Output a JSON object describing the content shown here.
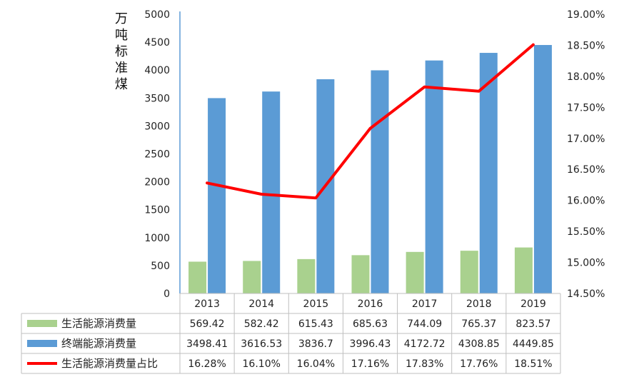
{
  "chart_data": {
    "type": "bar",
    "categories": [
      "2013",
      "2014",
      "2015",
      "2016",
      "2017",
      "2018",
      "2019"
    ],
    "ylabel": "万吨标准煤",
    "ylim": [
      0,
      5000
    ],
    "y_ticks": [
      "0",
      "500",
      "1000",
      "1500",
      "2000",
      "2500",
      "3000",
      "3500",
      "4000",
      "4500",
      "5000"
    ],
    "y2lim": [
      0.145,
      0.19
    ],
    "y2_ticks": [
      "14.50%",
      "15.00%",
      "15.50%",
      "16.00%",
      "16.50%",
      "17.00%",
      "17.50%",
      "18.00%",
      "18.50%",
      "19.00%"
    ],
    "legend_placement": "data-table-bottom",
    "series": [
      {
        "name": "生活能源消费量",
        "kind": "bar",
        "axis": "left",
        "color": "#a9d18e",
        "values": [
          569.42,
          582.42,
          615.43,
          685.63,
          744.09,
          765.37,
          823.57
        ],
        "labels": [
          "569.42",
          "582.42",
          "615.43",
          "685.63",
          "744.09",
          "765.37",
          "823.57"
        ]
      },
      {
        "name": "终端能源消费量",
        "kind": "bar",
        "axis": "left",
        "color": "#5b9bd5",
        "values": [
          3498.41,
          3616.53,
          3836.7,
          3996.43,
          4172.72,
          4308.85,
          4449.85
        ],
        "labels": [
          "3498.41",
          "3616.53",
          "3836.7",
          "3996.43",
          "4172.72",
          "4308.85",
          "4449.85"
        ]
      },
      {
        "name": "生活能源消费量占比",
        "kind": "line",
        "axis": "right",
        "color": "#ff0000",
        "values": [
          0.1628,
          0.161,
          0.1604,
          0.1716,
          0.1783,
          0.1776,
          0.1851
        ],
        "labels": [
          "16.28%",
          "16.10%",
          "16.04%",
          "17.16%",
          "17.83%",
          "17.76%",
          "18.51%"
        ]
      }
    ]
  }
}
